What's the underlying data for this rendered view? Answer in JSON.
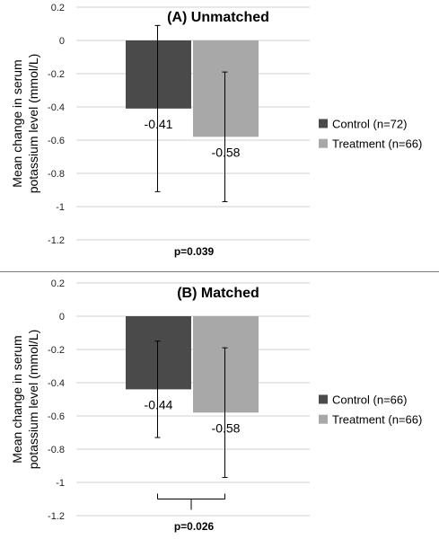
{
  "chart_data": [
    {
      "type": "bar",
      "title": "(A) Unmatched",
      "ylabel": "Mean change in serum potassium level (mmol/L)",
      "ylabel_lines": [
        "Mean change in serum",
        "potassium level (mmol/L)"
      ],
      "xlabel": "",
      "ylim": [
        -1.2,
        0.2
      ],
      "yticks": [
        0.2,
        0,
        -0.2,
        -0.4,
        -0.6,
        -0.8,
        -1,
        -1.2
      ],
      "ytick_labels": [
        "0.2",
        "0",
        "-0.2",
        "-0.4",
        "-0.6",
        "-0.8",
        "-1",
        "-1.2"
      ],
      "grid": true,
      "legend_position": "right",
      "annotation": "p=0.039",
      "significance_bracket": false,
      "series": [
        {
          "name": "Control (n=72)",
          "value": -0.41,
          "label": "-0.41",
          "error_low": -0.91,
          "error_high": 0.09,
          "color": "#4a4a4a"
        },
        {
          "name": "Treatment (n=66)",
          "value": -0.58,
          "label": "-0.58",
          "error_low": -0.97,
          "error_high": -0.19,
          "color": "#a8a8a8"
        }
      ]
    },
    {
      "type": "bar",
      "title": "(B) Matched",
      "ylabel": "Mean change in serum potassium level (mmol/L)",
      "ylabel_lines": [
        "Mean change in serum",
        "potassium level (mmol/L)"
      ],
      "xlabel": "",
      "ylim": [
        -1.2,
        0.2
      ],
      "yticks": [
        0.2,
        0,
        -0.2,
        -0.4,
        -0.6,
        -0.8,
        -1,
        -1.2
      ],
      "ytick_labels": [
        "0.2",
        "0",
        "-0.2",
        "-0.4",
        "-0.6",
        "-0.8",
        "-1",
        "-1.2"
      ],
      "grid": true,
      "legend_position": "right",
      "annotation": "p=0.026",
      "significance_bracket": true,
      "series": [
        {
          "name": "Control (n=66)",
          "value": -0.44,
          "label": "-0.44",
          "error_low": -0.73,
          "error_high": -0.15,
          "color": "#4a4a4a"
        },
        {
          "name": "Treatment (n=66)",
          "value": -0.58,
          "label": "-0.58",
          "error_low": -0.97,
          "error_high": -0.19,
          "color": "#a8a8a8"
        }
      ]
    }
  ]
}
